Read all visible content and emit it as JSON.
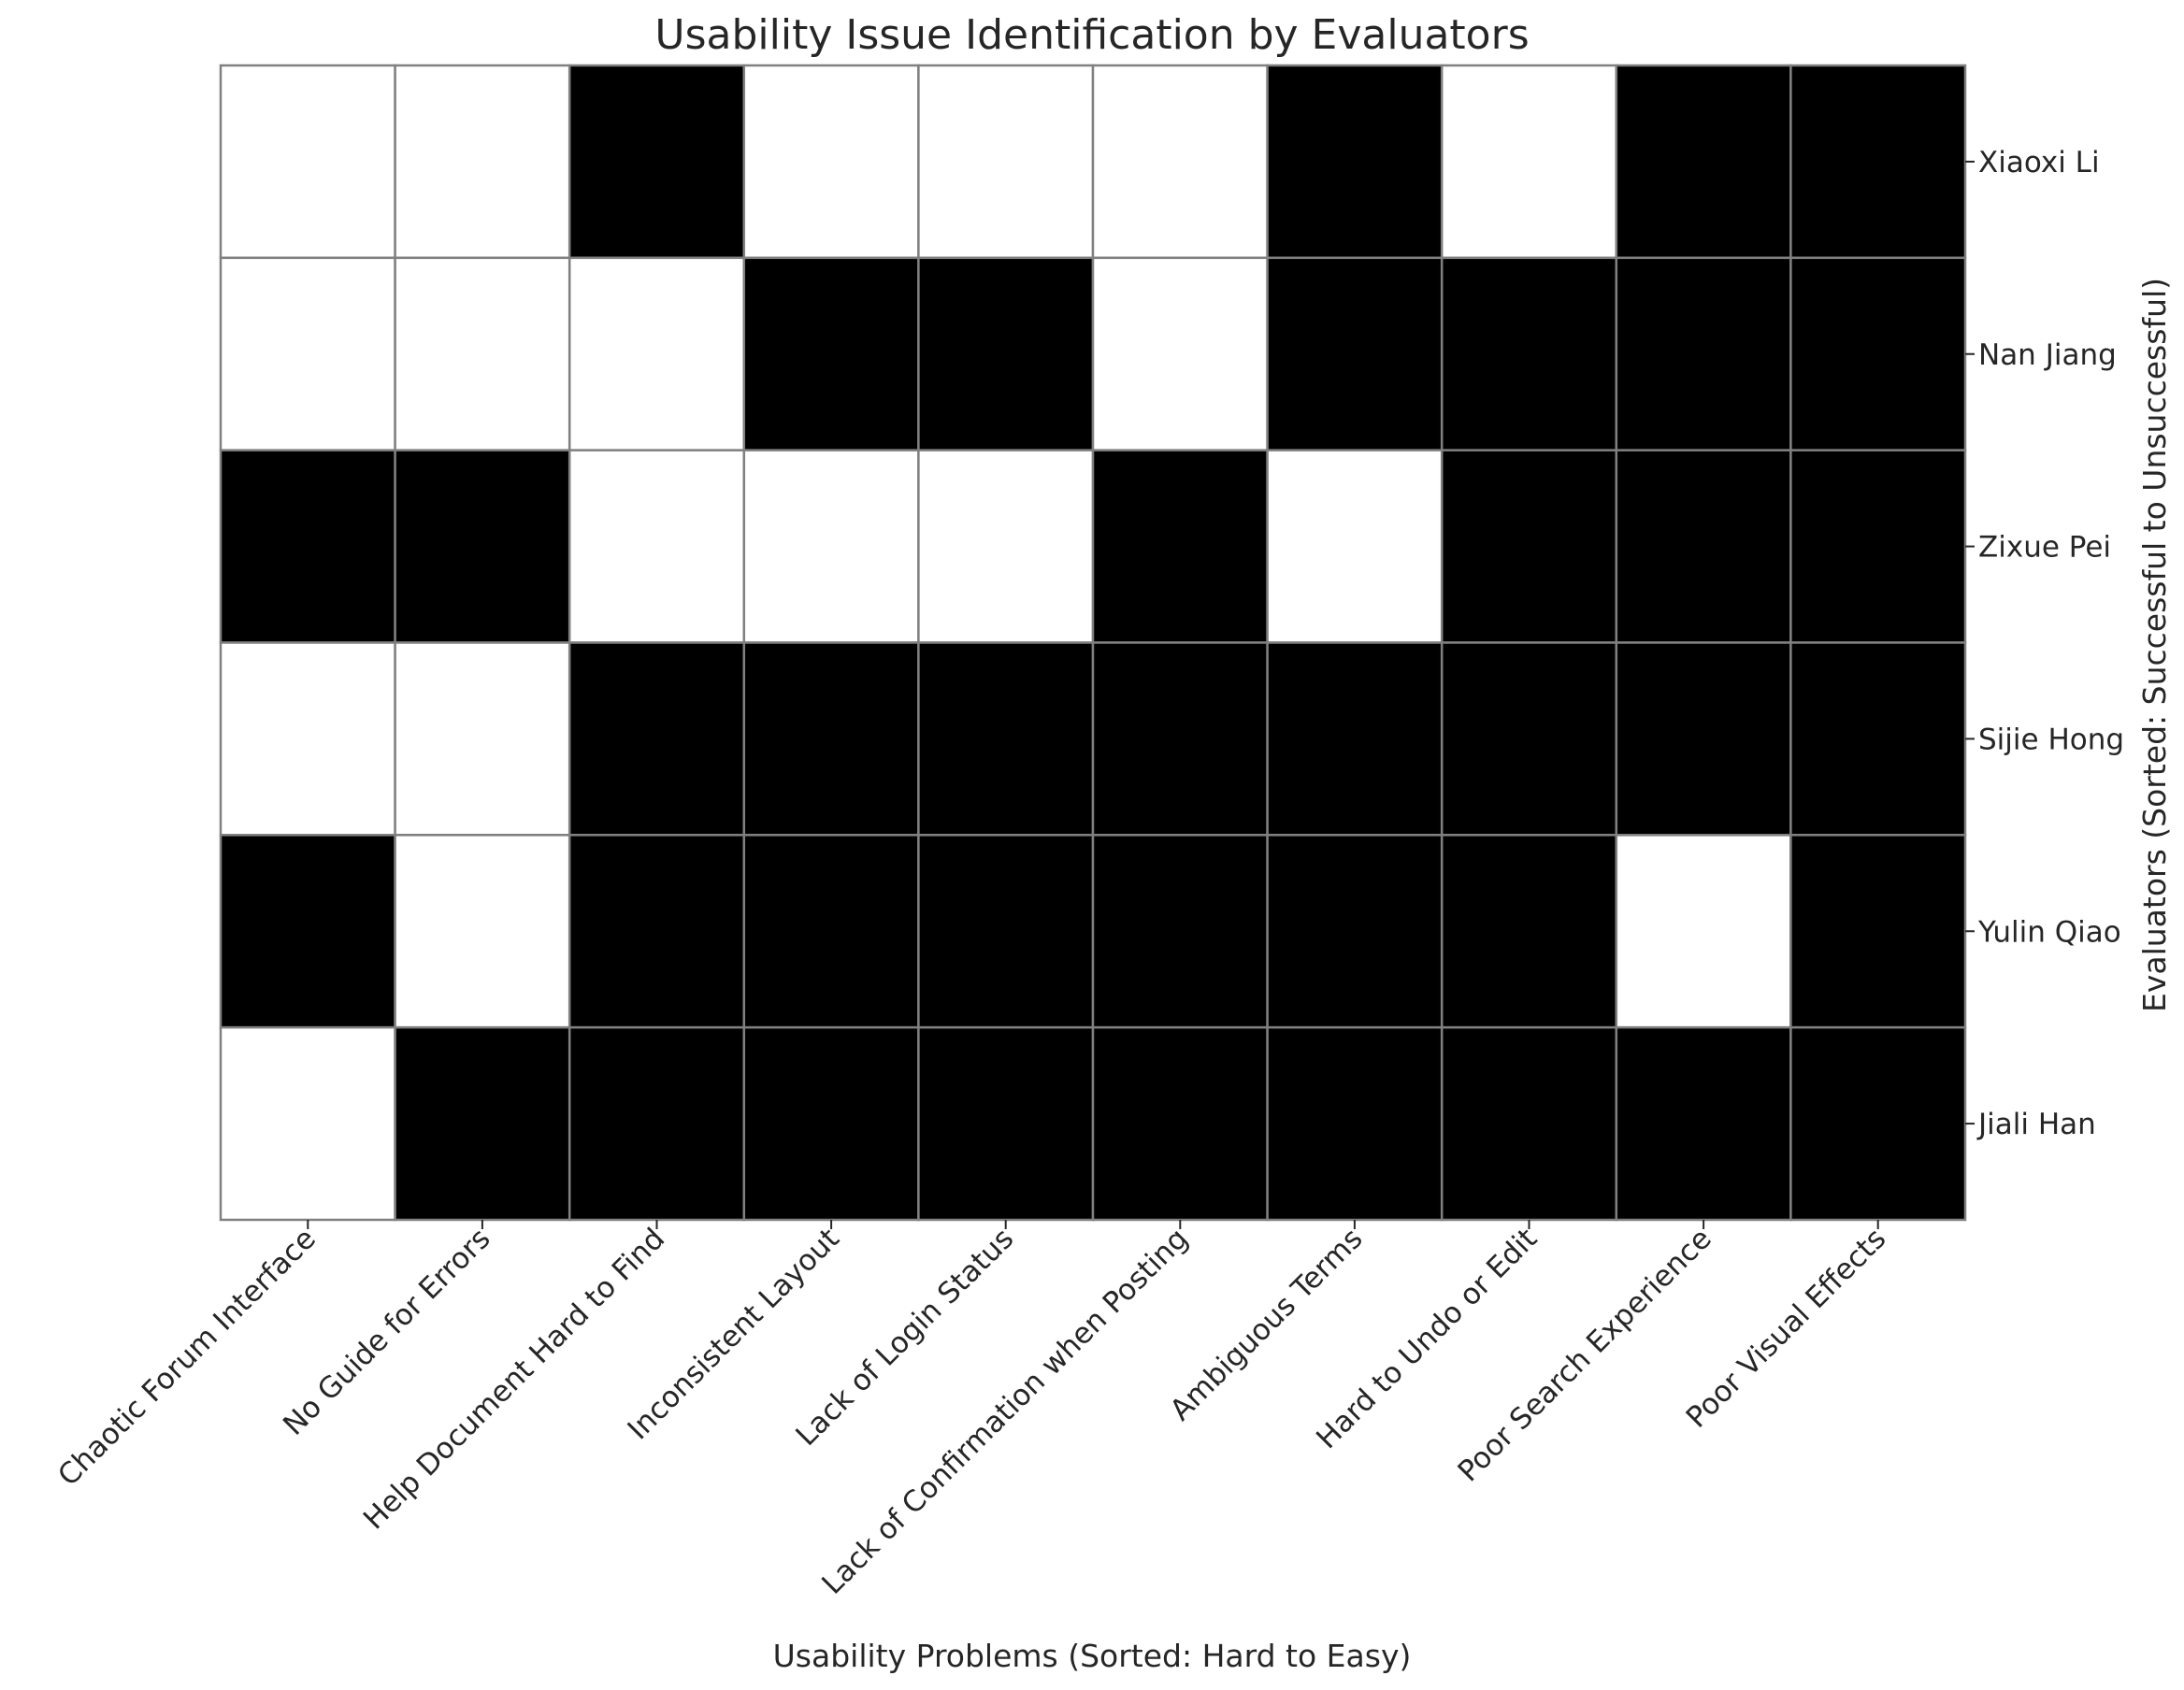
{
  "chart_data": {
    "type": "heatmap",
    "title": "Usability Issue Identification by Evaluators",
    "xlabel": "Usability Problems (Sorted: Hard to Easy)",
    "ylabel": "Evaluators (Sorted: Successful to Unsuccessful)",
    "x_categories": [
      "Chaotic Forum Interface",
      "No Guide for Errors",
      "Help Document Hard to Find",
      "Inconsistent Layout",
      "Lack of Login Status",
      "Lack of Confirmation when Posting",
      "Ambiguous Terms",
      "Hard to Undo or Edit",
      "Poor Search Experience",
      "Poor Visual Effects"
    ],
    "y_categories": [
      "Xiaoxi Li",
      "Nan Jiang",
      "Zixue Pei",
      "Sijie Hong",
      "Yulin Qiao",
      "Jiali Han"
    ],
    "values": [
      [
        0,
        0,
        1,
        0,
        0,
        0,
        1,
        0,
        1,
        1
      ],
      [
        0,
        0,
        0,
        1,
        1,
        0,
        1,
        1,
        1,
        1
      ],
      [
        1,
        1,
        0,
        0,
        0,
        1,
        0,
        1,
        1,
        1
      ],
      [
        0,
        0,
        1,
        1,
        1,
        1,
        1,
        1,
        1,
        1
      ],
      [
        1,
        0,
        1,
        1,
        1,
        1,
        1,
        1,
        0,
        1
      ],
      [
        0,
        1,
        1,
        1,
        1,
        1,
        1,
        1,
        1,
        1
      ]
    ],
    "colors": {
      "0": "#ffffff",
      "1": "#000000",
      "grid": "#808080"
    },
    "y_axis_position": "right",
    "grid": true
  }
}
